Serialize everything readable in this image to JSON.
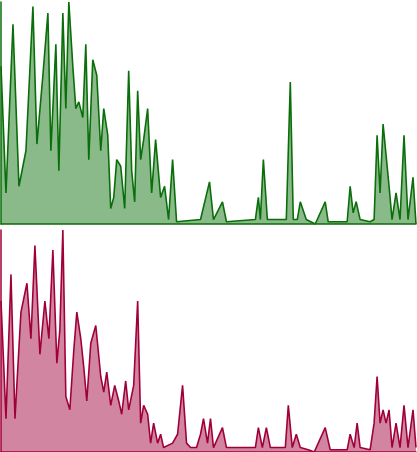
{
  "chart_data": [
    {
      "type": "area",
      "color": "#0a6e0a",
      "tick_labels": false,
      "xlim": [
        0,
        416
      ],
      "ylim": [
        0,
        100
      ],
      "x": [
        0,
        5,
        12,
        18,
        25,
        32,
        36,
        42,
        47,
        50,
        55,
        58,
        62,
        65,
        68,
        72,
        75,
        78,
        82,
        85,
        88,
        92,
        96,
        100,
        103,
        107,
        110,
        113,
        116,
        120,
        124,
        128,
        131,
        134,
        137,
        140,
        143,
        147,
        151,
        155,
        160,
        164,
        168,
        172,
        176,
        200,
        209,
        213,
        222,
        226,
        255,
        258,
        260,
        263,
        267,
        283,
        286,
        290,
        293,
        297,
        300,
        306,
        315,
        325,
        328,
        347,
        350,
        353,
        356,
        360,
        370,
        374,
        377,
        380,
        383,
        386,
        389,
        392,
        396,
        400,
        404,
        408,
        413,
        416
      ],
      "values": [
        71,
        14,
        90,
        17,
        33,
        98,
        36,
        67,
        95,
        33,
        81,
        24,
        95,
        52,
        100,
        71,
        52,
        55,
        48,
        81,
        29,
        74,
        67,
        33,
        52,
        40,
        7,
        12,
        29,
        26,
        7,
        69,
        24,
        10,
        60,
        29,
        38,
        52,
        14,
        38,
        12,
        17,
        2,
        29,
        1,
        2,
        19,
        2,
        10,
        1,
        2,
        12,
        2,
        29,
        2,
        2,
        2,
        64,
        2,
        2,
        10,
        2,
        0,
        10,
        1,
        1,
        17,
        5,
        10,
        2,
        1,
        2,
        40,
        14,
        45,
        31,
        17,
        2,
        14,
        2,
        40,
        2,
        21,
        0
      ]
    },
    {
      "type": "area",
      "color": "#a0003a",
      "tick_labels": false,
      "xlim": [
        0,
        416
      ],
      "ylim": [
        0,
        100
      ],
      "x": [
        0,
        5,
        10,
        14,
        20,
        26,
        30,
        34,
        39,
        44,
        48,
        52,
        56,
        59,
        62,
        65,
        69,
        73,
        76,
        80,
        83,
        86,
        90,
        95,
        100,
        103,
        106,
        110,
        114,
        118,
        121,
        125,
        128,
        133,
        137,
        140,
        143,
        147,
        150,
        153,
        157,
        160,
        163,
        172,
        177,
        182,
        186,
        190,
        196,
        200,
        203,
        207,
        210,
        213,
        222,
        226,
        255,
        258,
        262,
        266,
        270,
        285,
        288,
        292,
        296,
        300,
        308,
        314,
        325,
        330,
        347,
        350,
        354,
        357,
        360,
        370,
        374,
        377,
        380,
        383,
        386,
        389,
        392,
        396,
        400,
        404,
        408,
        413,
        416
      ],
      "values": [
        68,
        15,
        80,
        15,
        63,
        76,
        51,
        93,
        44,
        68,
        51,
        91,
        40,
        55,
        100,
        25,
        19,
        46,
        63,
        51,
        38,
        23,
        49,
        57,
        34,
        27,
        36,
        21,
        30,
        23,
        17,
        32,
        19,
        30,
        68,
        13,
        21,
        17,
        4,
        13,
        4,
        8,
        2,
        4,
        8,
        30,
        4,
        2,
        2,
        8,
        15,
        4,
        15,
        2,
        11,
        2,
        2,
        11,
        2,
        11,
        2,
        2,
        21,
        2,
        8,
        2,
        1,
        0,
        11,
        1,
        1,
        8,
        2,
        13,
        2,
        1,
        13,
        34,
        13,
        19,
        13,
        19,
        2,
        13,
        2,
        21,
        2,
        19,
        2
      ]
    }
  ]
}
